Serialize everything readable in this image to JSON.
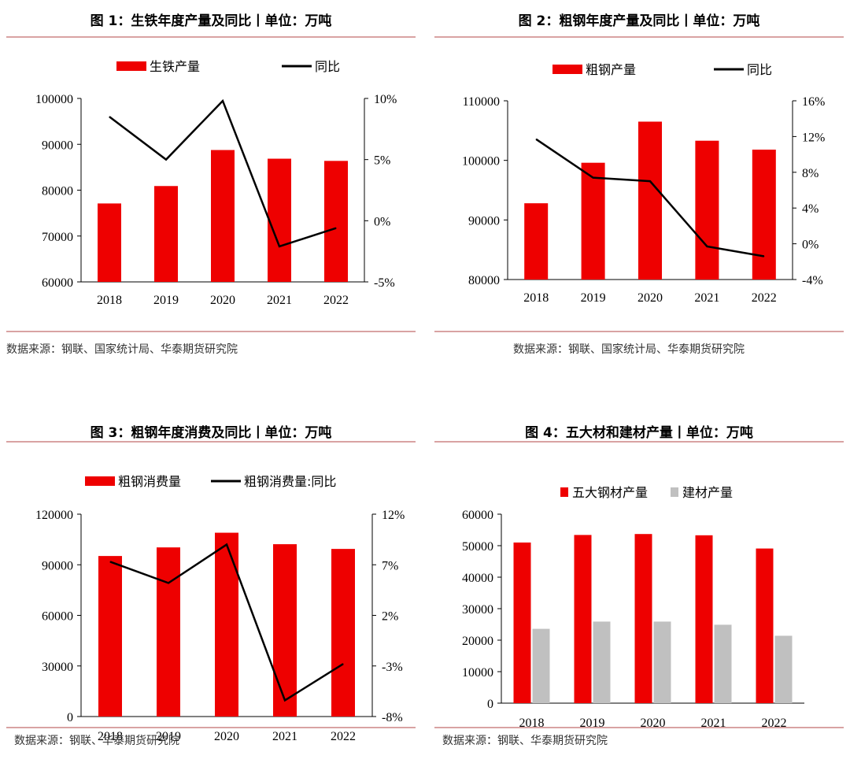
{
  "charts": [
    {
      "title": "图 1：生铁年度产量及同比丨单位：万吨",
      "source": "数据来源：钢联、国家统计局、华泰期货研究院",
      "legend": [
        "生铁产量",
        "同比"
      ]
    },
    {
      "title": "图 2：粗钢年度产量及同比丨单位：万吨",
      "source": "数据来源：钢联、国家统计局、华泰期货研究院",
      "legend": [
        "粗钢产量",
        "同比"
      ]
    },
    {
      "title": "图 3：粗钢年度消费及同比丨单位：万吨",
      "source": "数据来源：钢联、华泰期货研究院",
      "legend": [
        "粗钢消费量",
        "粗钢消费量:同比"
      ]
    },
    {
      "title": "图 4：五大材和建材产量丨单位：万吨",
      "source": "数据来源：钢联、华泰期货研究院",
      "legend": [
        "五大钢材产量",
        "建材产量"
      ]
    }
  ],
  "colors": {
    "red": "#ee0000",
    "black": "#000000",
    "gray": "#c0c0c0",
    "rule": "#d9a3a3"
  },
  "chart_data": [
    {
      "type": "bar+line",
      "title": "图 1：生铁年度产量及同比丨单位：万吨",
      "categories": [
        "2018",
        "2019",
        "2020",
        "2021",
        "2022"
      ],
      "series": [
        {
          "name": "生铁产量",
          "type": "bar",
          "axis": "left",
          "values": [
            77100,
            80900,
            88750,
            86860,
            86380
          ]
        },
        {
          "name": "同比",
          "type": "line",
          "axis": "right",
          "values": [
            8.5,
            5.0,
            9.8,
            -2.1,
            -0.6
          ]
        }
      ],
      "ylim_left": [
        60000,
        100000
      ],
      "yticks_left": [
        "60000",
        "70000",
        "80000",
        "90000",
        "100000"
      ],
      "ylim_right": [
        -5,
        10
      ],
      "yticks_right": [
        "-5%",
        "0%",
        "5%",
        "10%"
      ],
      "legend_position": "top",
      "grid": false
    },
    {
      "type": "bar+line",
      "title": "图 2：粗钢年度产量及同比丨单位：万吨",
      "categories": [
        "2018",
        "2019",
        "2020",
        "2021",
        "2022"
      ],
      "series": [
        {
          "name": "粗钢产量",
          "type": "bar",
          "axis": "left",
          "values": [
            92800,
            99600,
            106500,
            103300,
            101800
          ]
        },
        {
          "name": "同比",
          "type": "line",
          "axis": "right",
          "values": [
            11.7,
            7.4,
            7.0,
            -0.3,
            -1.4
          ]
        }
      ],
      "ylim_left": [
        80000,
        110000
      ],
      "yticks_left": [
        "80000",
        "90000",
        "100000",
        "110000"
      ],
      "ylim_right": [
        -4,
        16
      ],
      "yticks_right": [
        "-4%",
        "0%",
        "4%",
        "8%",
        "12%",
        "16%"
      ],
      "legend_position": "top",
      "grid": false
    },
    {
      "type": "bar+line",
      "title": "图 3：粗钢年度消费及同比丨单位：万吨",
      "categories": [
        "2018",
        "2019",
        "2020",
        "2021",
        "2022"
      ],
      "series": [
        {
          "name": "粗钢消费量",
          "type": "bar",
          "axis": "left",
          "values": [
            95200,
            100300,
            109000,
            102200,
            99400
          ]
        },
        {
          "name": "粗钢消费量:同比",
          "type": "line",
          "axis": "right",
          "values": [
            7.3,
            5.2,
            9.0,
            -6.4,
            -2.8
          ]
        }
      ],
      "ylim_left": [
        0,
        120000
      ],
      "yticks_left": [
        "0",
        "30000",
        "60000",
        "90000",
        "120000"
      ],
      "ylim_right": [
        -8,
        12
      ],
      "yticks_right": [
        "-8%",
        "-3%",
        "2%",
        "7%",
        "12%"
      ],
      "legend_position": "top",
      "grid": false
    },
    {
      "type": "bar",
      "title": "图 4：五大材和建材产量丨单位：万吨",
      "categories": [
        "2018",
        "2019",
        "2020",
        "2021",
        "2022"
      ],
      "series": [
        {
          "name": "五大钢材产量",
          "values": [
            51000,
            53400,
            53700,
            53300,
            49100
          ]
        },
        {
          "name": "建材产量",
          "values": [
            23600,
            25900,
            25900,
            24900,
            21400
          ]
        }
      ],
      "ylim": [
        0,
        60000
      ],
      "yticks": [
        "0",
        "10000",
        "20000",
        "30000",
        "40000",
        "50000",
        "60000"
      ],
      "legend_position": "top",
      "grid": false
    }
  ]
}
